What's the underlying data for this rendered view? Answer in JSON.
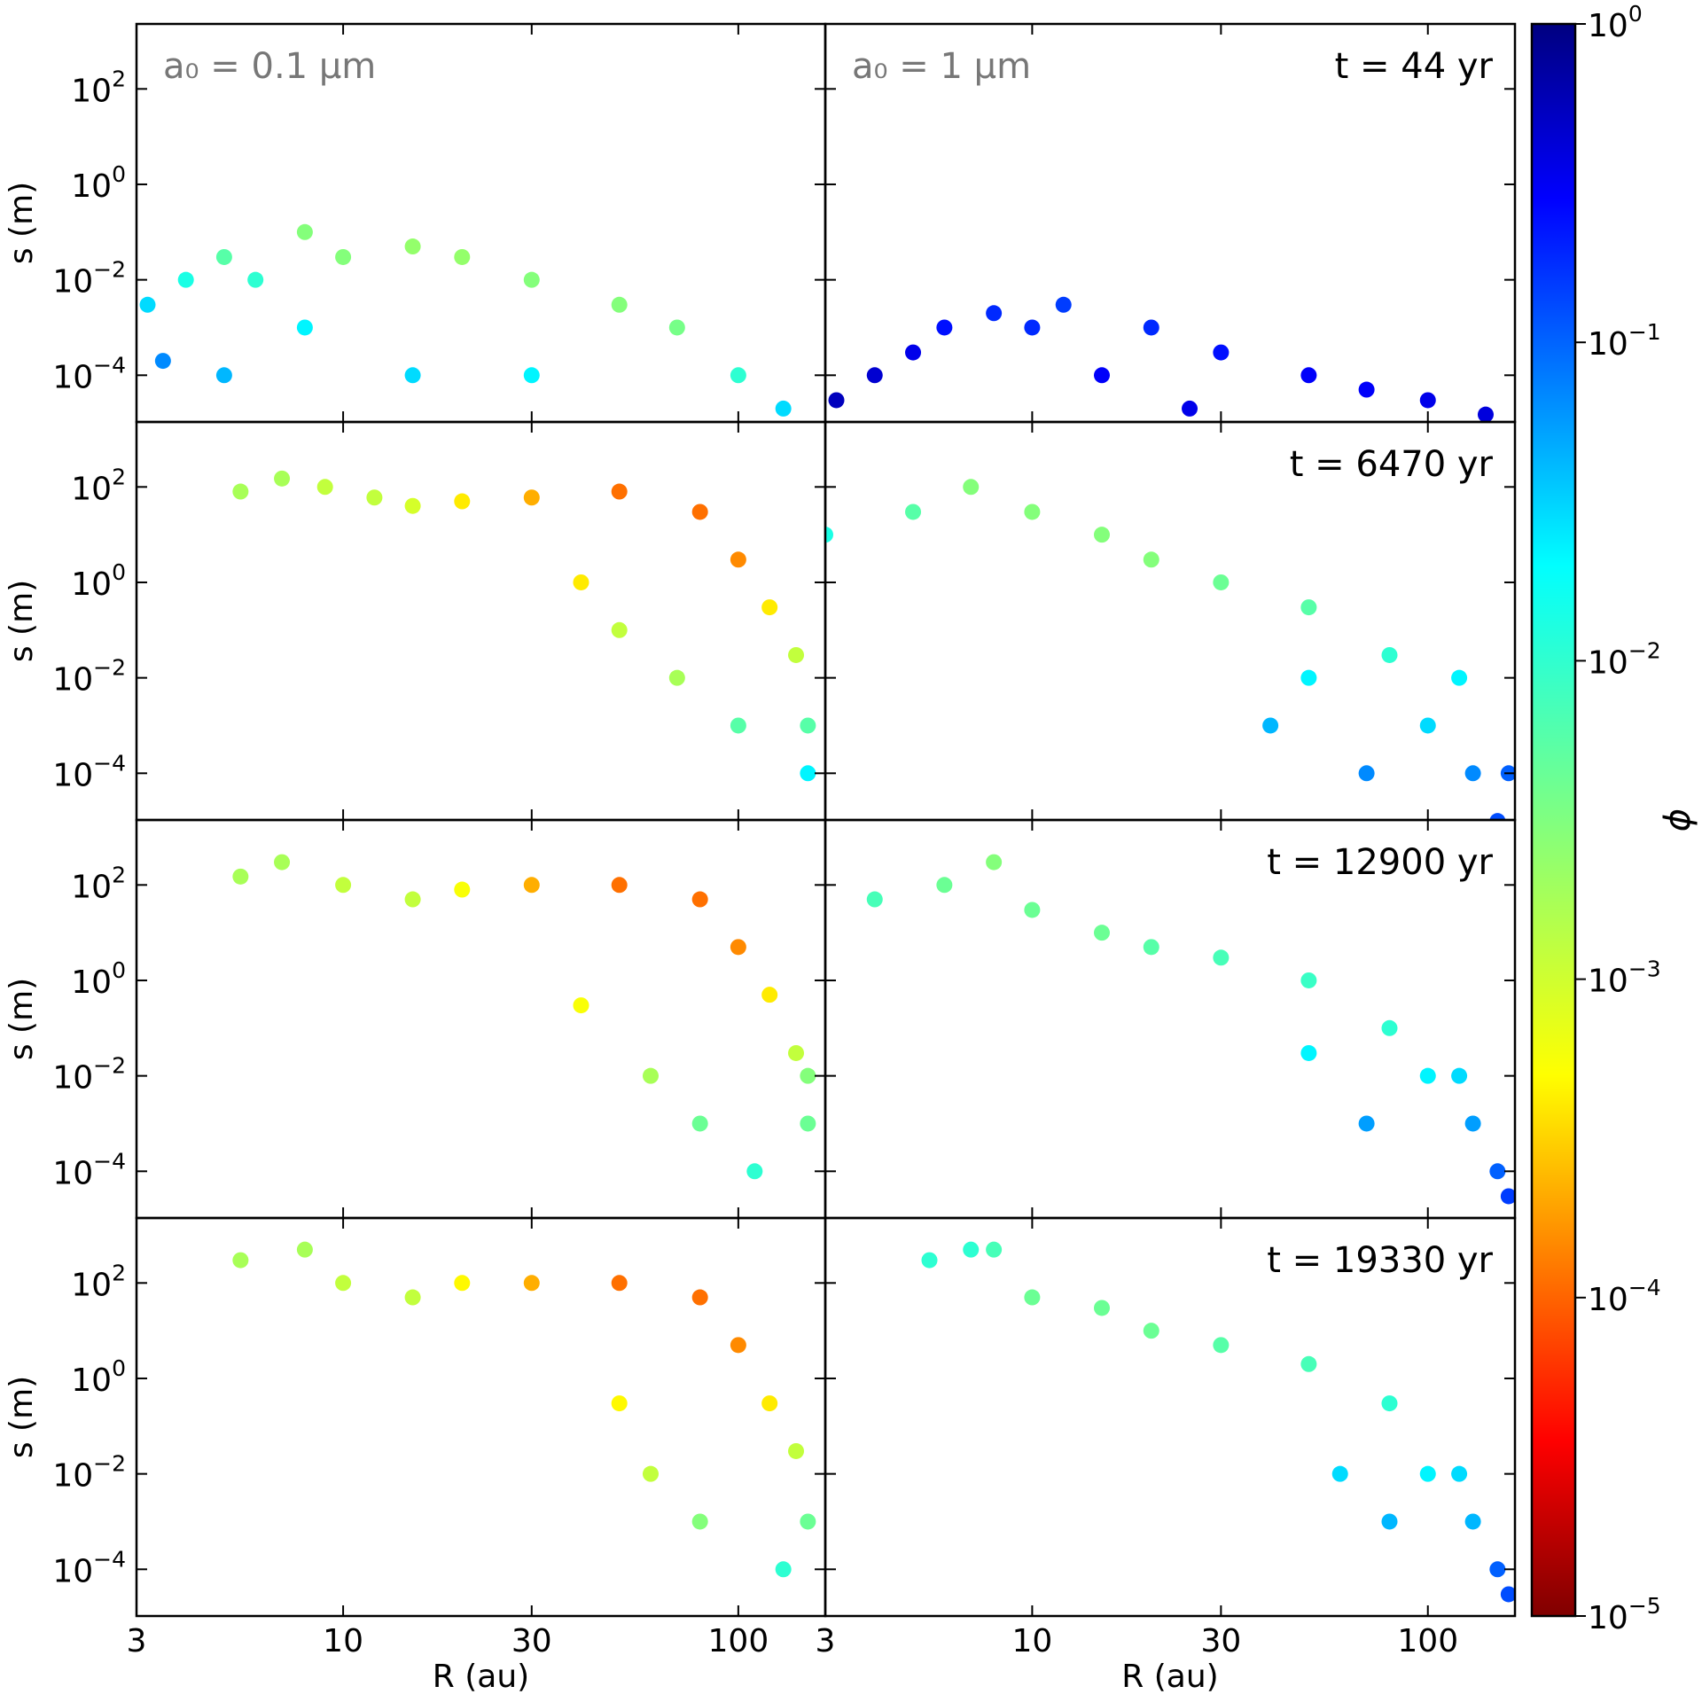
{
  "chart_data": {
    "type": "scatter",
    "colormap": "jet_r",
    "log_x": true,
    "log_y": true,
    "xlim": [
      3,
      166
    ],
    "xticks": [
      3,
      10,
      30,
      100
    ],
    "ylim": [
      1.05e-05,
      2300
    ],
    "yticks": [
      {
        "value": 0.0001,
        "label": "10^−4"
      },
      {
        "value": 0.01,
        "label": "10^−2"
      },
      {
        "value": 1,
        "label": "10^0"
      },
      {
        "value": 100,
        "label": "10^2"
      }
    ],
    "panels": [
      {
        "ylabel": "s (m)",
        "annotation": "a₀ = 0.1 μm",
        "x": [
          3.2,
          4,
          5,
          6,
          8,
          8,
          10,
          15,
          15,
          20,
          30,
          30,
          50,
          70,
          100,
          130,
          5,
          3.5
        ],
        "y": [
          0.003,
          0.01,
          0.03,
          0.01,
          0.1,
          0.001,
          0.03,
          0.05,
          0.0001,
          0.03,
          0.01,
          0.0001,
          0.003,
          0.001,
          0.0001,
          2e-05,
          0.0001,
          0.0002
        ],
        "phi": [
          0.02,
          0.01,
          0.005,
          0.008,
          0.003,
          0.015,
          0.003,
          0.0025,
          0.02,
          0.0025,
          0.003,
          0.015,
          0.003,
          0.0035,
          0.008,
          0.02,
          0.03,
          0.05
        ]
      },
      {
        "annotation": "a₀ = 1 μm",
        "time": "t = 44 yr",
        "x": [
          3.2,
          4,
          5,
          6,
          8,
          10,
          12,
          15,
          20,
          30,
          50,
          70,
          100,
          140,
          25
        ],
        "y": [
          3e-05,
          0.0001,
          0.0003,
          0.001,
          0.002,
          0.001,
          0.003,
          0.0001,
          0.001,
          0.0003,
          0.0001,
          5e-05,
          3e-05,
          1.5e-05,
          2e-05
        ],
        "phi": [
          0.5,
          0.4,
          0.3,
          0.2,
          0.15,
          0.15,
          0.12,
          0.25,
          0.15,
          0.2,
          0.25,
          0.25,
          0.3,
          0.35,
          0.3
        ]
      },
      {
        "ylabel": "s (m)",
        "x": [
          5.5,
          7,
          9,
          12,
          15,
          20,
          30,
          50,
          80,
          100,
          120,
          140,
          150,
          150,
          100,
          70,
          50,
          40
        ],
        "y": [
          80,
          150,
          100,
          60,
          40,
          50,
          60,
          80,
          30,
          3,
          0.3,
          0.03,
          0.001,
          0.0001,
          0.001,
          0.01,
          0.1,
          1
        ],
        "phi": [
          0.002,
          0.002,
          0.0015,
          0.0015,
          0.0012,
          0.0006,
          0.0003,
          0.00015,
          0.00015,
          0.0002,
          0.0006,
          0.0015,
          0.005,
          0.015,
          0.005,
          0.002,
          0.0015,
          0.0006
        ]
      },
      {
        "time": "t = 6470 yr",
        "x": [
          3,
          5,
          7,
          10,
          15,
          20,
          30,
          50,
          80,
          100,
          130,
          150,
          70,
          50,
          40,
          120,
          160
        ],
        "y": [
          10,
          30,
          100,
          30,
          10,
          3,
          1,
          0.3,
          0.03,
          0.001,
          0.0001,
          1e-05,
          0.0001,
          0.01,
          0.001,
          0.01,
          0.0001
        ],
        "phi": [
          0.01,
          0.005,
          0.003,
          0.003,
          0.003,
          0.003,
          0.004,
          0.005,
          0.008,
          0.02,
          0.05,
          0.1,
          0.05,
          0.015,
          0.03,
          0.015,
          0.08
        ]
      },
      {
        "ylabel": "s (m)",
        "x": [
          5.5,
          7,
          10,
          15,
          20,
          30,
          50,
          80,
          100,
          120,
          140,
          150,
          110,
          80,
          60,
          40,
          150
        ],
        "y": [
          150,
          300,
          100,
          50,
          80,
          100,
          100,
          50,
          5,
          0.5,
          0.03,
          0.001,
          0.0001,
          0.001,
          0.01,
          0.3,
          0.01
        ],
        "phi": [
          0.002,
          0.002,
          0.0015,
          0.0015,
          0.0008,
          0.0003,
          0.00015,
          0.00015,
          0.0002,
          0.0006,
          0.0015,
          0.004,
          0.008,
          0.004,
          0.002,
          0.0008,
          0.003
        ]
      },
      {
        "time": "t = 12900 yr",
        "x": [
          4,
          6,
          8,
          10,
          15,
          20,
          30,
          50,
          80,
          100,
          130,
          150,
          160,
          70,
          50,
          120
        ],
        "y": [
          50,
          100,
          300,
          30,
          10,
          5,
          3,
          1,
          0.1,
          0.01,
          0.001,
          0.0001,
          3e-05,
          0.001,
          0.03,
          0.01
        ],
        "phi": [
          0.006,
          0.004,
          0.003,
          0.004,
          0.004,
          0.005,
          0.006,
          0.007,
          0.008,
          0.015,
          0.04,
          0.08,
          0.12,
          0.04,
          0.015,
          0.02
        ]
      },
      {
        "ylabel": "s (m)",
        "xlabel": "R (au)",
        "x": [
          5.5,
          8,
          10,
          15,
          20,
          30,
          50,
          80,
          100,
          120,
          140,
          150,
          130,
          80,
          60,
          50
        ],
        "y": [
          300,
          500,
          100,
          50,
          100,
          100,
          100,
          50,
          5,
          0.3,
          0.03,
          0.001,
          0.0001,
          0.001,
          0.01,
          0.3
        ],
        "phi": [
          0.002,
          0.002,
          0.0015,
          0.0015,
          0.0007,
          0.0003,
          0.00015,
          0.00015,
          0.0002,
          0.0006,
          0.0015,
          0.004,
          0.008,
          0.003,
          0.0015,
          0.0007
        ]
      },
      {
        "time": "t = 19330 yr",
        "xlabel": "R (au)",
        "x": [
          5.5,
          7,
          8,
          10,
          15,
          20,
          30,
          50,
          80,
          100,
          130,
          150,
          160,
          80,
          60,
          120
        ],
        "y": [
          300,
          500,
          500,
          50,
          30,
          10,
          5,
          2,
          0.3,
          0.01,
          0.001,
          0.0001,
          3e-05,
          0.001,
          0.01,
          0.01
        ],
        "phi": [
          0.008,
          0.008,
          0.006,
          0.004,
          0.004,
          0.004,
          0.005,
          0.006,
          0.008,
          0.015,
          0.03,
          0.08,
          0.1,
          0.03,
          0.02,
          0.02
        ]
      }
    ],
    "colorbar": {
      "label": "ϕ",
      "log": true,
      "lim": [
        1e-05,
        1
      ],
      "ticks": [
        {
          "value": 1e-05,
          "label": "10^−5"
        },
        {
          "value": 0.0001,
          "label": "10^−4"
        },
        {
          "value": 0.001,
          "label": "10^−3"
        },
        {
          "value": 0.01,
          "label": "10^−2"
        },
        {
          "value": 0.1,
          "label": "10^−1"
        },
        {
          "value": 1,
          "label": "10^0"
        }
      ]
    }
  }
}
